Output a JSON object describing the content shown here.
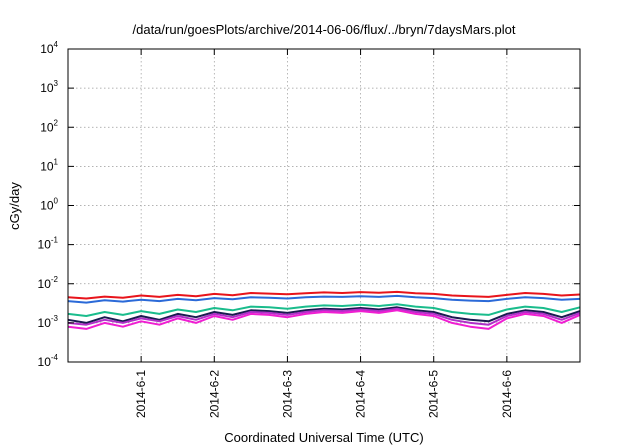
{
  "chart_data": {
    "type": "line",
    "title": "/data/run/goesPlots/archive/2014-06-06/flux/../bryn/7daysMars.plot",
    "xlabel": "Coordinated Universal Time (UTC)",
    "ylabel": "cGy/day",
    "yscale": "log",
    "ylim": [
      0.0001,
      10000
    ],
    "xlim": [
      "2014-05-31 00:00",
      "2014-06-07 00:00"
    ],
    "y_ticks": [
      {
        "base": "10",
        "exp": "-4",
        "value": 0.0001
      },
      {
        "base": "10",
        "exp": "-3",
        "value": 0.001
      },
      {
        "base": "10",
        "exp": "-2",
        "value": 0.01
      },
      {
        "base": "10",
        "exp": "-1",
        "value": 0.1
      },
      {
        "base": "10",
        "exp": "0",
        "value": 1
      },
      {
        "base": "10",
        "exp": "1",
        "value": 10
      },
      {
        "base": "10",
        "exp": "2",
        "value": 100
      },
      {
        "base": "10",
        "exp": "3",
        "value": 1000
      },
      {
        "base": "10",
        "exp": "4",
        "value": 10000
      }
    ],
    "x_ticks": [
      {
        "label": "2014-6-1",
        "value": "2014-06-01 00:00"
      },
      {
        "label": "2014-6-2",
        "value": "2014-06-02 00:00"
      },
      {
        "label": "2014-6-3",
        "value": "2014-06-03 00:00"
      },
      {
        "label": "2014-6-4",
        "value": "2014-06-04 00:00"
      },
      {
        "label": "2014-6-5",
        "value": "2014-06-05 00:00"
      },
      {
        "label": "2014-6-6",
        "value": "2014-06-06 00:00"
      }
    ],
    "grid": true,
    "x": [
      "2014-05-31 00:00",
      "2014-05-31 06:00",
      "2014-05-31 12:00",
      "2014-05-31 18:00",
      "2014-06-01 00:00",
      "2014-06-01 06:00",
      "2014-06-01 12:00",
      "2014-06-01 18:00",
      "2014-06-02 00:00",
      "2014-06-02 06:00",
      "2014-06-02 12:00",
      "2014-06-02 18:00",
      "2014-06-03 00:00",
      "2014-06-03 06:00",
      "2014-06-03 12:00",
      "2014-06-03 18:00",
      "2014-06-04 00:00",
      "2014-06-04 06:00",
      "2014-06-04 12:00",
      "2014-06-04 18:00",
      "2014-06-05 00:00",
      "2014-06-05 06:00",
      "2014-06-05 12:00",
      "2014-06-05 18:00",
      "2014-06-06 00:00",
      "2014-06-06 06:00",
      "2014-06-06 12:00",
      "2014-06-06 18:00",
      "2014-06-07 00:00"
    ],
    "series": [
      {
        "color": "#e8141b",
        "values": [
          0.0045,
          0.0042,
          0.0047,
          0.0044,
          0.005,
          0.0046,
          0.0052,
          0.0048,
          0.0055,
          0.0051,
          0.0058,
          0.0056,
          0.0054,
          0.0057,
          0.006,
          0.0058,
          0.0061,
          0.0059,
          0.0062,
          0.0057,
          0.0055,
          0.005,
          0.0048,
          0.0046,
          0.0052,
          0.0058,
          0.0055,
          0.005,
          0.0053
        ]
      },
      {
        "color": "#2b6ad8",
        "values": [
          0.0036,
          0.0033,
          0.0038,
          0.0035,
          0.0039,
          0.0036,
          0.0041,
          0.0038,
          0.0043,
          0.004,
          0.0045,
          0.0044,
          0.0042,
          0.0045,
          0.0047,
          0.0046,
          0.0048,
          0.0046,
          0.0049,
          0.0045,
          0.0043,
          0.0039,
          0.0037,
          0.0036,
          0.0041,
          0.0045,
          0.0043,
          0.0039,
          0.0041
        ]
      },
      {
        "color": "#1abc8c",
        "values": [
          0.0017,
          0.0015,
          0.0019,
          0.0016,
          0.002,
          0.0017,
          0.0022,
          0.0019,
          0.0024,
          0.0021,
          0.0026,
          0.0025,
          0.0023,
          0.0026,
          0.0028,
          0.0027,
          0.0029,
          0.0027,
          0.003,
          0.0026,
          0.0024,
          0.0019,
          0.0017,
          0.0016,
          0.0022,
          0.0026,
          0.0024,
          0.0019,
          0.0025
        ]
      },
      {
        "color": "#1a1a50",
        "values": [
          0.0012,
          0.001,
          0.0014,
          0.0011,
          0.0015,
          0.0012,
          0.0017,
          0.0014,
          0.0019,
          0.0016,
          0.0021,
          0.002,
          0.0018,
          0.0021,
          0.0023,
          0.0022,
          0.0024,
          0.0022,
          0.0025,
          0.0021,
          0.0019,
          0.0014,
          0.0012,
          0.0011,
          0.0017,
          0.0021,
          0.0019,
          0.0014,
          0.002
        ]
      },
      {
        "color": "#b030c8",
        "values": [
          0.001,
          0.0009,
          0.0012,
          0.001,
          0.0013,
          0.0011,
          0.0015,
          0.0012,
          0.0017,
          0.0014,
          0.0019,
          0.0018,
          0.0016,
          0.0019,
          0.0021,
          0.002,
          0.0022,
          0.002,
          0.0023,
          0.0019,
          0.0017,
          0.0012,
          0.001,
          0.0009,
          0.0015,
          0.0019,
          0.0017,
          0.0012,
          0.0018
        ]
      },
      {
        "color": "#f01ed2",
        "values": [
          0.0008,
          0.0007,
          0.001,
          0.0008,
          0.0011,
          0.0009,
          0.0013,
          0.001,
          0.0015,
          0.0012,
          0.0017,
          0.0016,
          0.0014,
          0.0017,
          0.0019,
          0.0018,
          0.002,
          0.0018,
          0.0021,
          0.0017,
          0.0015,
          0.001,
          0.0008,
          0.0007,
          0.0013,
          0.0017,
          0.0015,
          0.001,
          0.0016
        ]
      }
    ]
  }
}
